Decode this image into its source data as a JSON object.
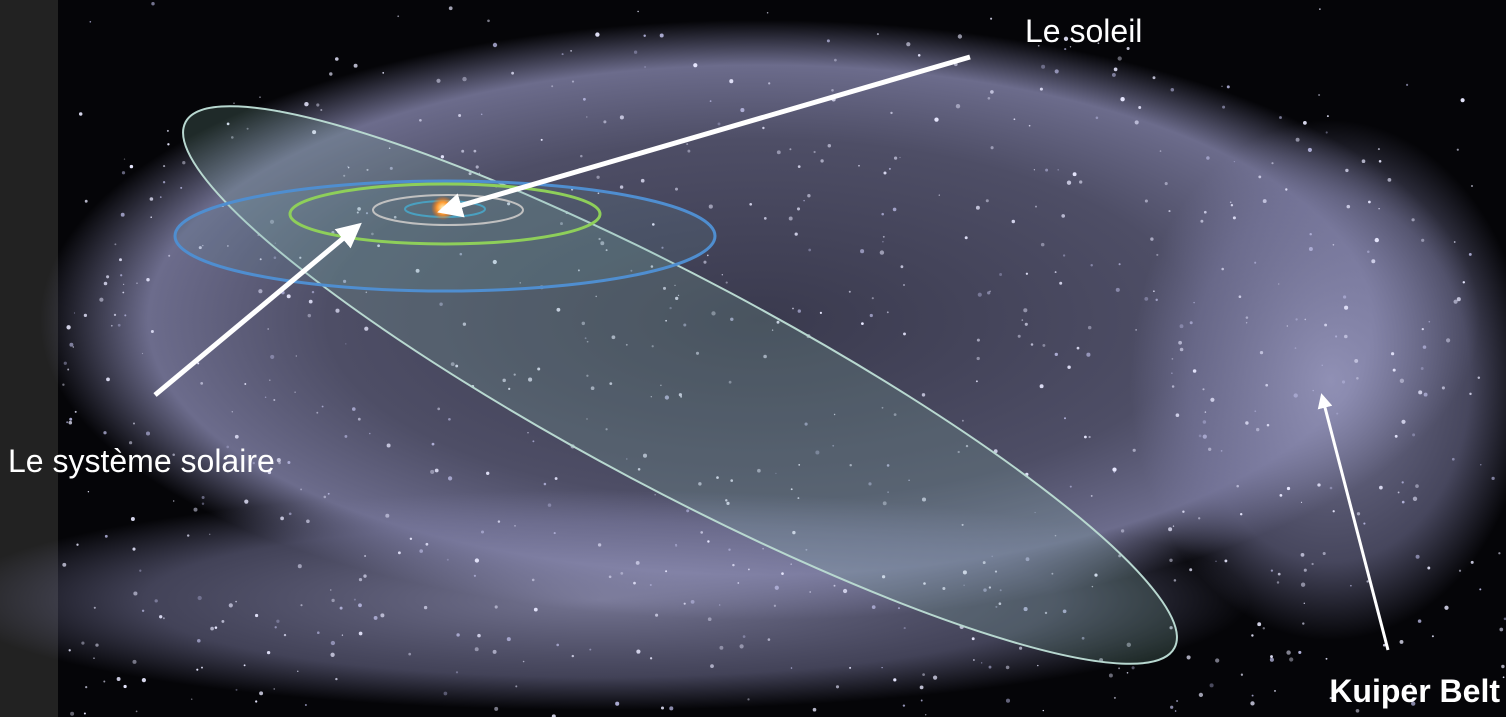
{
  "labels": {
    "sun": "Le soleil",
    "solar_system": "Le système solaire",
    "kuiper_belt": "Kuiper Belt"
  }
}
